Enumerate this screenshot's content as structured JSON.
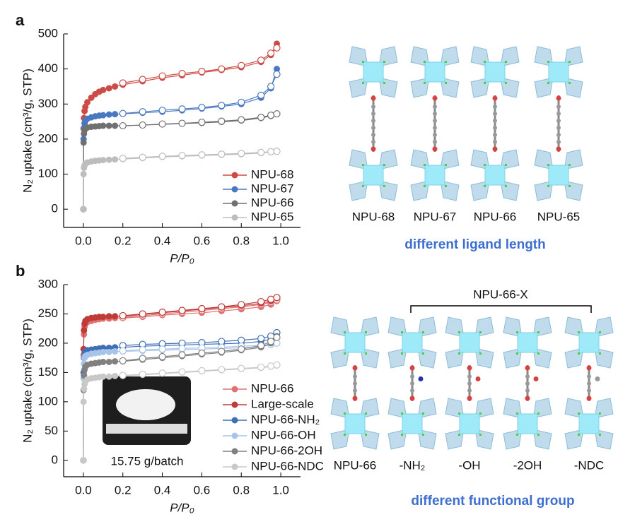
{
  "chart_data": [
    {
      "type": "line",
      "panel": "a",
      "xlabel": "P/P₀",
      "ylabel": "N₂ uptake (cm³/g, STP)",
      "xlim": [
        -0.1,
        1.1
      ],
      "ylim": [
        -52,
        500
      ],
      "xticks": [
        {
          "value": 0,
          "label": "0.0"
        },
        0.2,
        0.4,
        0.6,
        0.8,
        {
          "value": 1,
          "label": "1.0"
        }
      ],
      "yticks": [
        0,
        100,
        200,
        300,
        400,
        500
      ],
      "legend": "lower right",
      "x": [
        0,
        0.001,
        0.003,
        0.006,
        0.01,
        0.02,
        0.04,
        0.06,
        0.08,
        0.1,
        0.13,
        0.16,
        0.2,
        0.3,
        0.4,
        0.5,
        0.6,
        0.7,
        0.8,
        0.9,
        0.95,
        0.98
      ],
      "desorption_x": [
        0.2,
        0.3,
        0.4,
        0.5,
        0.6,
        0.7,
        0.8,
        0.9,
        0.95,
        0.98
      ],
      "series": [
        {
          "name": "NPU-68",
          "color": "#cd4b46",
          "values": [
            0,
            230,
            260,
            280,
            292,
            305,
            318,
            328,
            335,
            340,
            345,
            350,
            355,
            365,
            375,
            382,
            390,
            397,
            405,
            420,
            440,
            472
          ],
          "desorption": [
            360,
            370,
            380,
            387,
            393,
            400,
            410,
            425,
            445,
            460
          ]
        },
        {
          "name": "NPU-67",
          "color": "#4a78c0",
          "values": [
            0,
            200,
            232,
            245,
            252,
            258,
            262,
            265,
            267,
            268,
            270,
            271,
            272,
            275,
            278,
            282,
            287,
            293,
            300,
            318,
            345,
            400
          ],
          "desorption": [
            273,
            278,
            282,
            286,
            290,
            296,
            305,
            325,
            350,
            385
          ]
        },
        {
          "name": "NPU-66",
          "color": "#707070",
          "values": [
            0,
            190,
            215,
            225,
            230,
            233,
            235,
            236,
            237,
            238,
            238,
            238,
            238,
            240,
            242,
            244,
            246,
            249,
            253,
            260,
            266,
            273
          ],
          "desorption": [
            238,
            240,
            243,
            245,
            248,
            251,
            255,
            262,
            268,
            272
          ]
        },
        {
          "name": "NPU-65",
          "color": "#bdbdbd",
          "values": [
            0,
            100,
            118,
            125,
            130,
            133,
            136,
            138,
            139,
            140,
            141,
            142,
            143,
            146,
            149,
            151,
            153,
            155,
            157,
            160,
            163,
            166
          ],
          "desorption": [
            145,
            148,
            151,
            153,
            155,
            157,
            159,
            162,
            164,
            165
          ]
        }
      ]
    },
    {
      "type": "line",
      "panel": "b",
      "xlabel": "P/P₀",
      "ylabel": "N₂ uptake (cm³/g, STP)",
      "xlim": [
        -0.1,
        1.1
      ],
      "ylim": [
        -28,
        300
      ],
      "xticks": [
        {
          "value": 0,
          "label": "0.0"
        },
        0.2,
        0.4,
        0.6,
        0.8,
        {
          "value": 1,
          "label": "1.0"
        }
      ],
      "yticks": [
        0,
        50,
        100,
        150,
        200,
        250,
        300
      ],
      "legend": "lower right",
      "inset_caption": "15.75 g/batch",
      "x": [
        0,
        0.001,
        0.003,
        0.006,
        0.01,
        0.02,
        0.04,
        0.06,
        0.08,
        0.1,
        0.13,
        0.16,
        0.2,
        0.3,
        0.4,
        0.5,
        0.6,
        0.7,
        0.8,
        0.9,
        0.95,
        0.98
      ],
      "desorption_x": [
        0.2,
        0.3,
        0.4,
        0.5,
        0.6,
        0.7,
        0.8,
        0.9,
        0.95,
        0.98
      ],
      "series": [
        {
          "name": "NPU-66",
          "color": "#e07272",
          "values": [
            0,
            180,
            215,
            228,
            233,
            236,
            238,
            240,
            241,
            242,
            242,
            243,
            243,
            245,
            248,
            250,
            252,
            255,
            258,
            262,
            266,
            272
          ],
          "desorption": [
            244,
            247,
            250,
            253,
            256,
            259,
            262,
            266,
            270,
            274
          ]
        },
        {
          "name": "Large-scale",
          "color": "#c03a3a",
          "values": [
            0,
            190,
            222,
            233,
            238,
            241,
            243,
            244,
            245,
            245,
            246,
            246,
            246,
            249,
            252,
            255,
            258,
            261,
            264,
            268,
            272,
            277
          ],
          "desorption": [
            247,
            250,
            253,
            256,
            259,
            262,
            266,
            271,
            275,
            278
          ]
        },
        {
          "name": "NPU-66-NH₂",
          "color": "#3f6fb5",
          "values": [
            0,
            150,
            175,
            183,
            186,
            188,
            189,
            190,
            191,
            192,
            192,
            193,
            193,
            195,
            196,
            197,
            198,
            199,
            200,
            203,
            207,
            215
          ],
          "desorption": [
            196,
            198,
            199,
            200,
            201,
            203,
            205,
            208,
            212,
            218
          ]
        },
        {
          "name": "NPU-66-OH",
          "color": "#a8c3e8",
          "values": [
            0,
            140,
            165,
            175,
            178,
            180,
            182,
            183,
            184,
            185,
            185,
            186,
            186,
            187,
            188,
            189,
            190,
            191,
            192,
            194,
            197,
            200
          ],
          "desorption": [
            187,
            189,
            190,
            191,
            192,
            193,
            195,
            196,
            198,
            200
          ]
        },
        {
          "name": "NPU-66-2OH",
          "color": "#808080",
          "values": [
            0,
            120,
            145,
            155,
            160,
            163,
            165,
            166,
            167,
            168,
            168,
            169,
            169,
            172,
            175,
            178,
            181,
            184,
            188,
            193,
            200,
            212
          ],
          "desorption": [
            170,
            174,
            177,
            180,
            183,
            186,
            190,
            196,
            203,
            210
          ]
        },
        {
          "name": "NPU-66-NDC",
          "color": "#c8c8c8",
          "values": [
            0,
            100,
            122,
            130,
            135,
            138,
            140,
            141,
            142,
            143,
            143,
            144,
            144,
            146,
            148,
            150,
            152,
            154,
            156,
            158,
            160,
            162
          ],
          "desorption": [
            145,
            147,
            149,
            151,
            153,
            155,
            157,
            159,
            161,
            163
          ]
        }
      ]
    }
  ],
  "structures_a": {
    "labels": [
      "NPU-68",
      "NPU-67",
      "NPU-66",
      "NPU-65"
    ],
    "caption": "different ligand length"
  },
  "structures_b": {
    "labels": [
      "NPU-66",
      "-NH₂",
      "-OH",
      "-2OH",
      "-NDC"
    ],
    "group_label": "NPU-66-X",
    "caption": "different functional group"
  }
}
